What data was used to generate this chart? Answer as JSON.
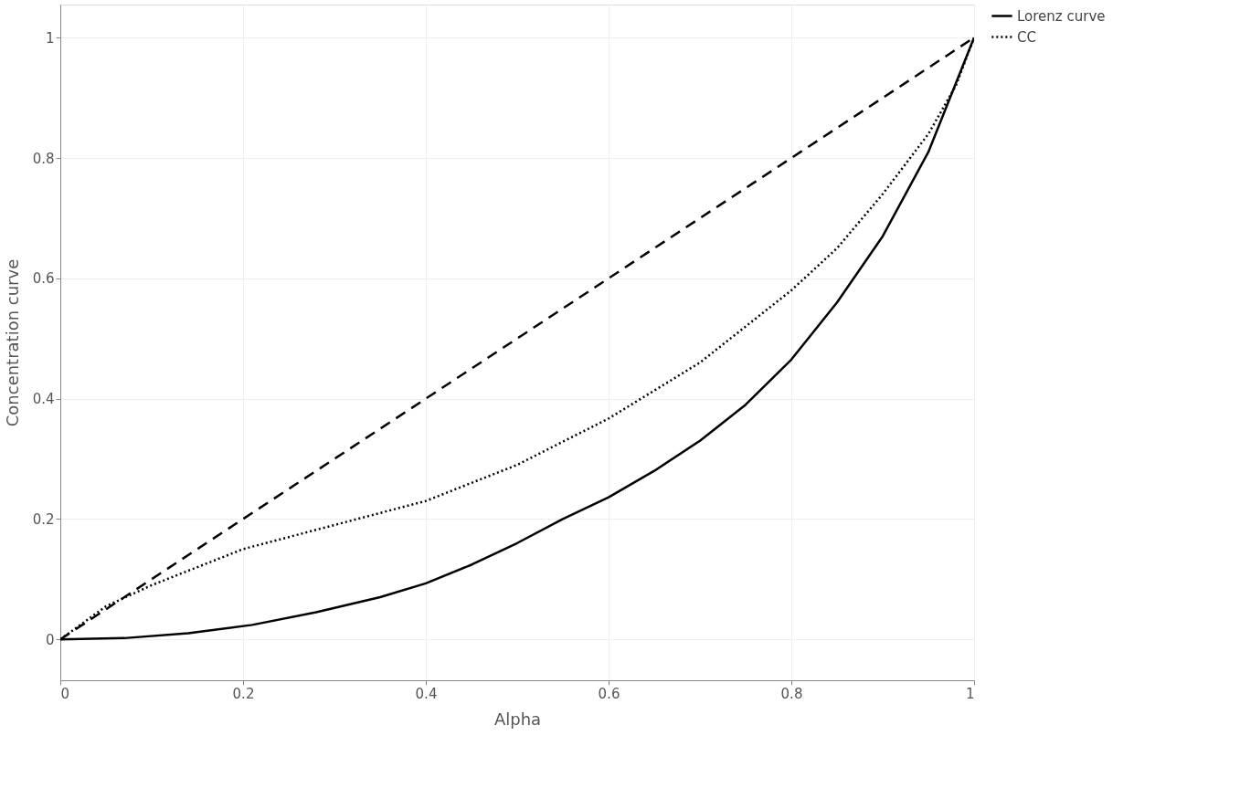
{
  "chart_data": {
    "type": "line",
    "xlabel": "Alpha",
    "ylabel": "Concentration curve",
    "xlim": [
      0,
      1
    ],
    "ylim": [
      -0.068,
      1.055
    ],
    "xticks": [
      0,
      0.2,
      0.4,
      0.6,
      0.8,
      1
    ],
    "yticks": [
      0,
      0.2,
      0.4,
      0.6,
      0.8,
      1
    ],
    "grid": true,
    "legend": "top right",
    "marker": "none",
    "series": [
      {
        "name": "Lorenz curve",
        "color": "#000000",
        "line_style": "solid",
        "x": [
          0,
          0.07,
          0.14,
          0.21,
          0.28,
          0.35,
          0.4,
          0.45,
          0.5,
          0.55,
          0.6,
          0.65,
          0.7,
          0.75,
          0.8,
          0.85,
          0.9,
          0.95,
          1
        ],
        "values": [
          0,
          0.002,
          0.01,
          0.024,
          0.045,
          0.07,
          0.093,
          0.124,
          0.16,
          0.2,
          0.236,
          0.28,
          0.33,
          0.39,
          0.465,
          0.56,
          0.67,
          0.81,
          1
        ]
      },
      {
        "name": "CC",
        "color": "#000000",
        "line_style": "dotted",
        "x": [
          0,
          0.05,
          0.1,
          0.2,
          0.3,
          0.4,
          0.5,
          0.6,
          0.7,
          0.8,
          0.85,
          0.9,
          0.95,
          0.98,
          1
        ],
        "values": [
          0,
          0.055,
          0.09,
          0.15,
          0.19,
          0.23,
          0.29,
          0.367,
          0.46,
          0.58,
          0.65,
          0.74,
          0.84,
          0.92,
          1
        ]
      },
      {
        "color": "#000000",
        "line_style": "dashed",
        "x": [
          0,
          1
        ],
        "values": [
          0,
          1
        ]
      }
    ]
  }
}
